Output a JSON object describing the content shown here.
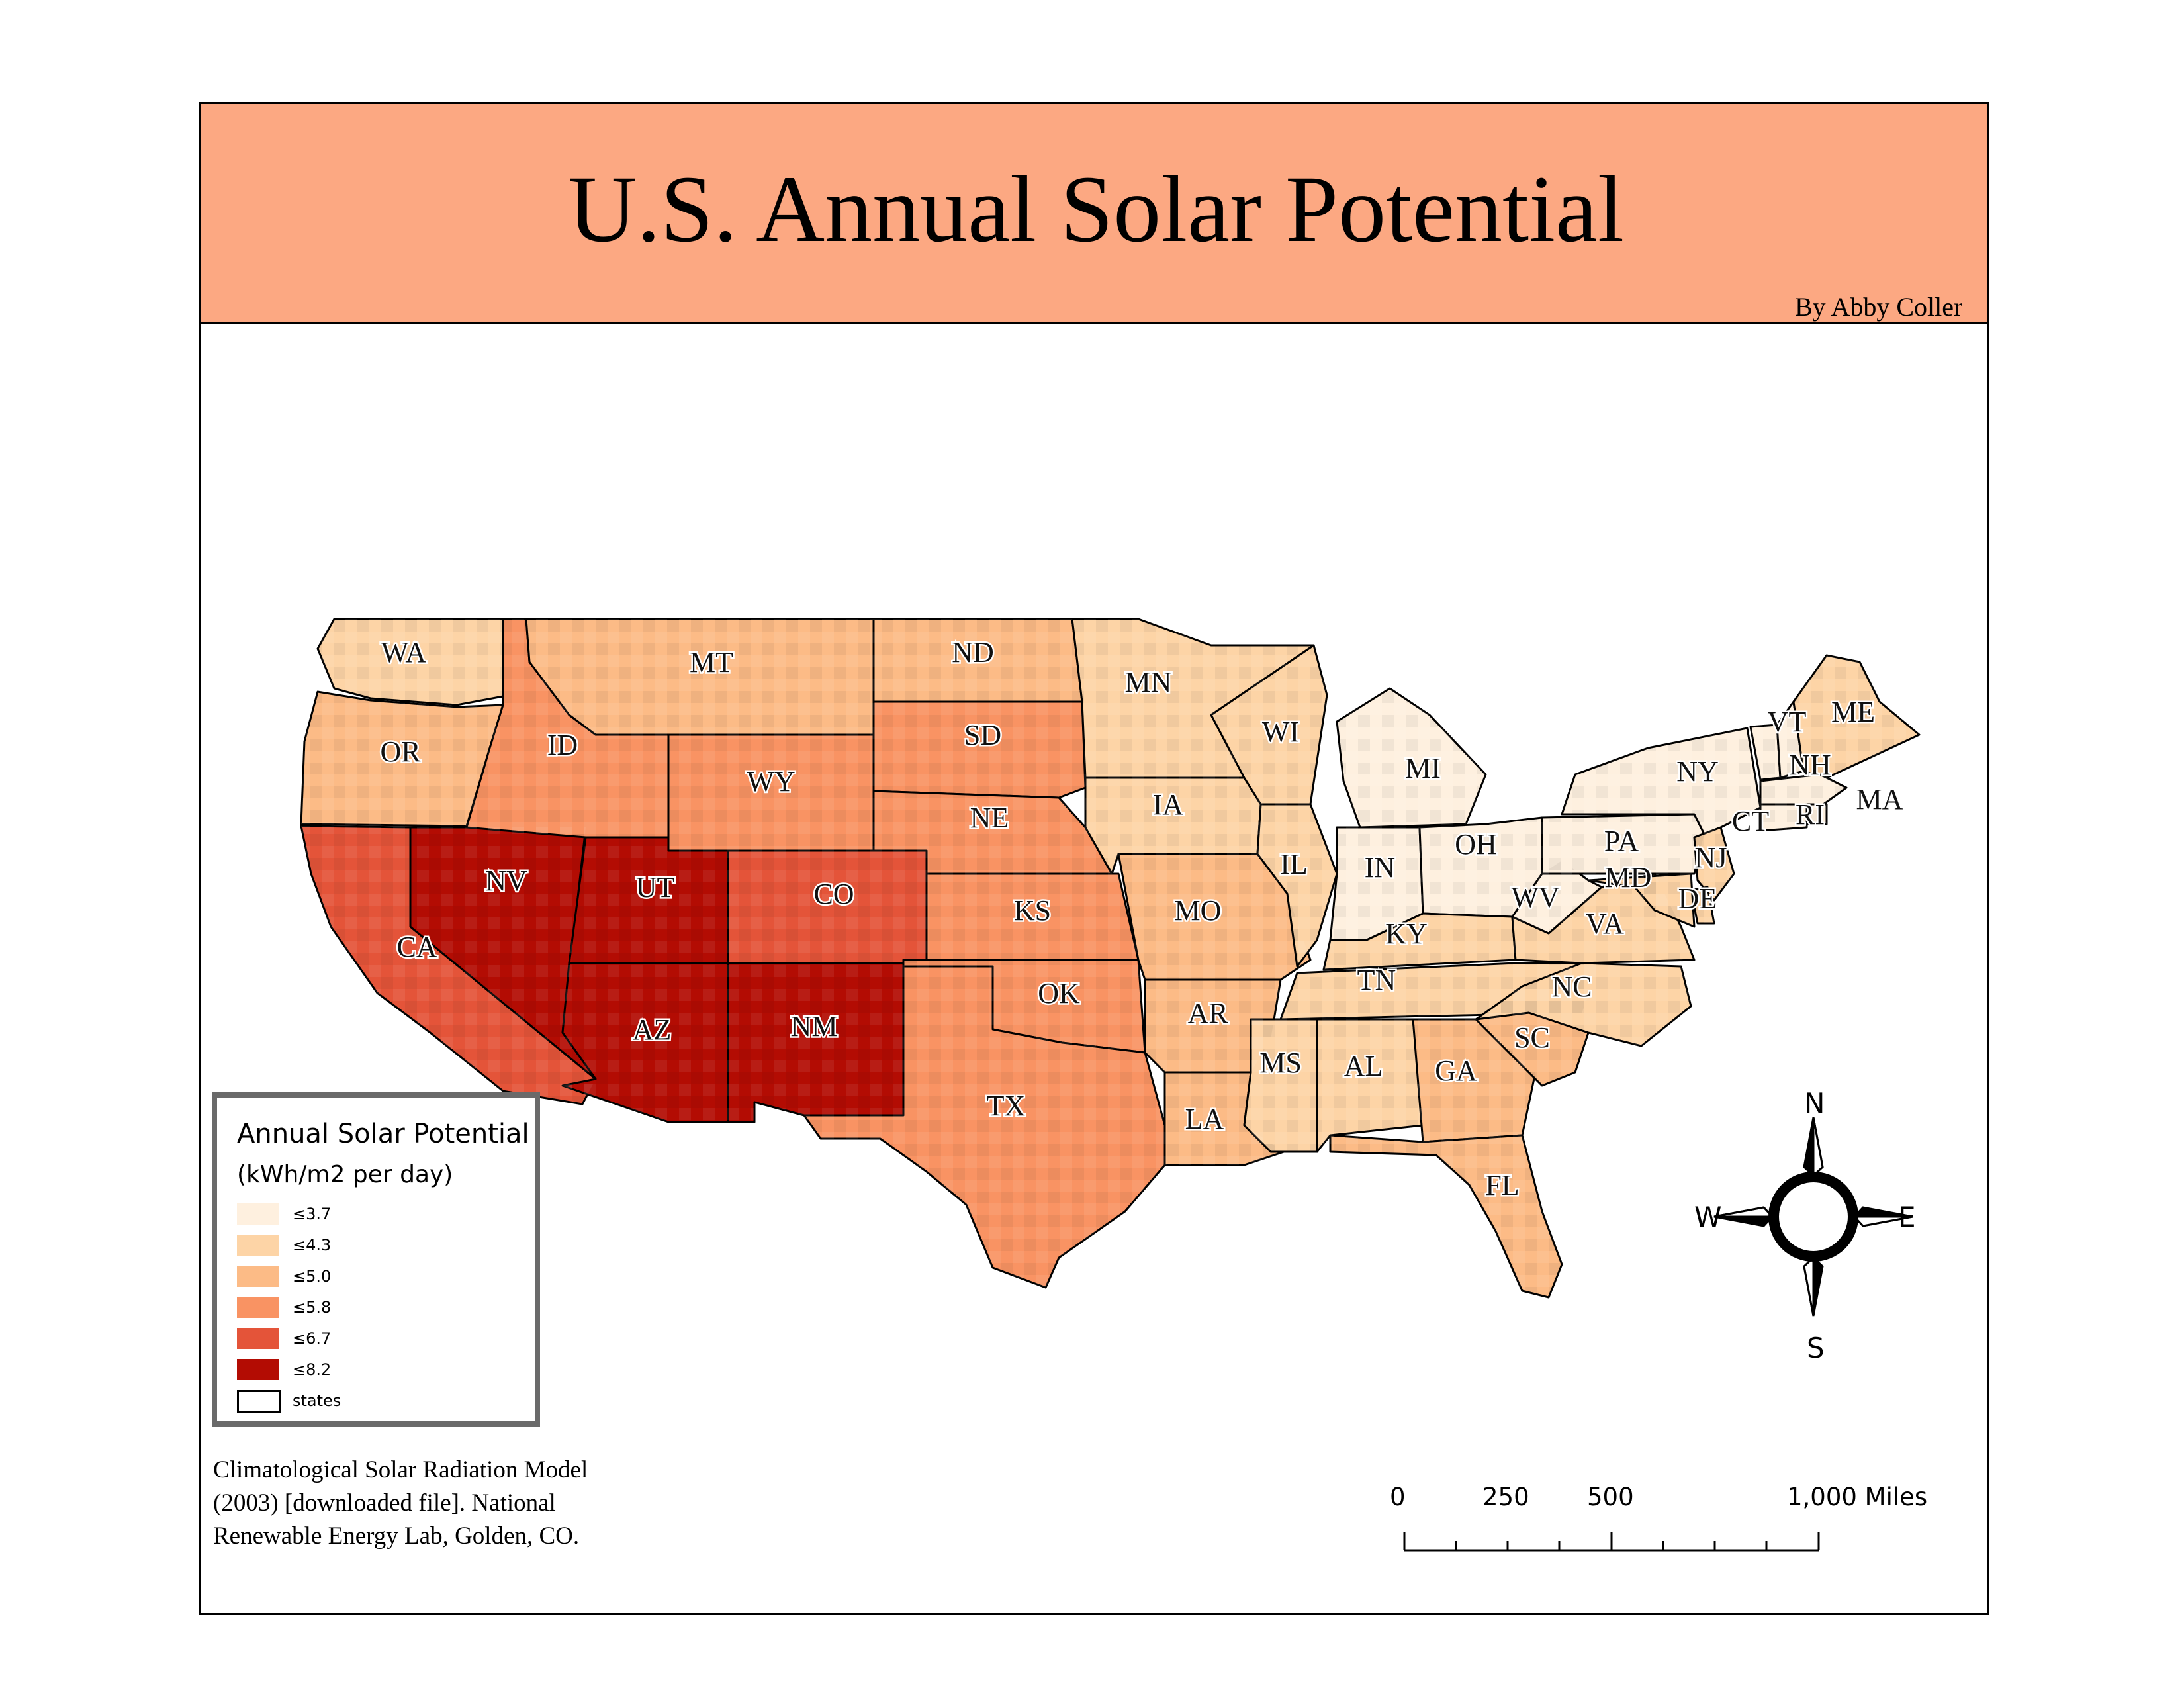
{
  "title": "U.S. Annual Solar Potential",
  "author": "By Abby Coller",
  "legend": {
    "title": "Annual Solar Potential",
    "subtitle": "(kWh/m2 per day)",
    "classes": [
      {
        "label": "≤3.7",
        "color": "#fef0df"
      },
      {
        "label": "≤4.3",
        "color": "#fdd4a6"
      },
      {
        "label": "≤5.0",
        "color": "#fcbb86"
      },
      {
        "label": "≤5.8",
        "color": "#f99363"
      },
      {
        "label": "≤6.7",
        "color": "#e45439"
      },
      {
        "label": "≤8.2",
        "color": "#b30c03"
      }
    ],
    "boundary_label": "states"
  },
  "states": [
    {
      "abbr": "WA",
      "class": 1
    },
    {
      "abbr": "OR",
      "class": 2
    },
    {
      "abbr": "CA",
      "class": 4
    },
    {
      "abbr": "NV",
      "class": 5
    },
    {
      "abbr": "ID",
      "class": 3
    },
    {
      "abbr": "MT",
      "class": 2
    },
    {
      "abbr": "WY",
      "class": 3
    },
    {
      "abbr": "UT",
      "class": 5
    },
    {
      "abbr": "AZ",
      "class": 5
    },
    {
      "abbr": "CO",
      "class": 4
    },
    {
      "abbr": "NM",
      "class": 5
    },
    {
      "abbr": "ND",
      "class": 2
    },
    {
      "abbr": "SD",
      "class": 3
    },
    {
      "abbr": "NE",
      "class": 3
    },
    {
      "abbr": "KS",
      "class": 3
    },
    {
      "abbr": "OK",
      "class": 3
    },
    {
      "abbr": "TX",
      "class": 3
    },
    {
      "abbr": "MN",
      "class": 1
    },
    {
      "abbr": "IA",
      "class": 1
    },
    {
      "abbr": "MO",
      "class": 2
    },
    {
      "abbr": "AR",
      "class": 2
    },
    {
      "abbr": "LA",
      "class": 2
    },
    {
      "abbr": "WI",
      "class": 1
    },
    {
      "abbr": "IL",
      "class": 1
    },
    {
      "abbr": "MI",
      "class": 0
    },
    {
      "abbr": "IN",
      "class": 0
    },
    {
      "abbr": "OH",
      "class": 0
    },
    {
      "abbr": "KY",
      "class": 1
    },
    {
      "abbr": "TN",
      "class": 1
    },
    {
      "abbr": "MS",
      "class": 1
    },
    {
      "abbr": "AL",
      "class": 1
    },
    {
      "abbr": "GA",
      "class": 2
    },
    {
      "abbr": "FL",
      "class": 2
    },
    {
      "abbr": "SC",
      "class": 2
    },
    {
      "abbr": "NC",
      "class": 1
    },
    {
      "abbr": "VA",
      "class": 1
    },
    {
      "abbr": "WV",
      "class": 0
    },
    {
      "abbr": "PA",
      "class": 0
    },
    {
      "abbr": "NY",
      "class": 0
    },
    {
      "abbr": "VT",
      "class": 0
    },
    {
      "abbr": "NH",
      "class": 0
    },
    {
      "abbr": "ME",
      "class": 1
    },
    {
      "abbr": "MA",
      "class": 0
    },
    {
      "abbr": "RI",
      "class": 0
    },
    {
      "abbr": "CT",
      "class": 0
    },
    {
      "abbr": "NJ",
      "class": 1
    },
    {
      "abbr": "DE",
      "class": 1
    },
    {
      "abbr": "MD",
      "class": 1
    }
  ],
  "compass": {
    "n": "N",
    "s": "S",
    "e": "E",
    "w": "W"
  },
  "scale_bar": {
    "ticks": [
      "0",
      "250",
      "500",
      "1,000 Miles"
    ]
  },
  "citation": [
    "Climatological Solar Radiation Model",
    "(2003) [downloaded file]. National",
    "Renewable Energy Lab, Golden, CO."
  ]
}
